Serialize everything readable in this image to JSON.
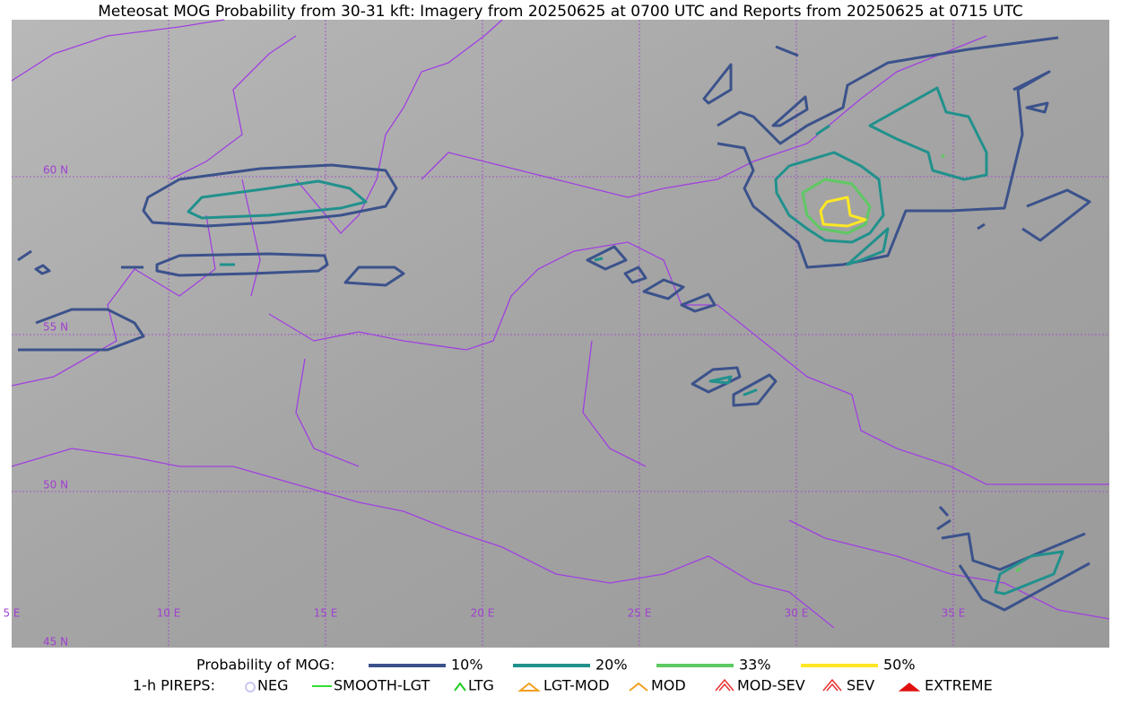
{
  "header": {
    "title": "Meteosat MOG Probability from 30-31 kft: Imagery from 20250625 at 0700 UTC and Reports from 20250625 at 0715 UTC"
  },
  "map": {
    "lat_labels": [
      "60 N",
      "55 N",
      "50 N",
      "45 N"
    ],
    "lon_labels": [
      "5 E",
      "10 E",
      "15 E",
      "20 E",
      "25 E",
      "30 E",
      "35 E"
    ]
  },
  "legend": {
    "mog": {
      "label": "Probability of MOG:",
      "items": [
        {
          "label": "10%",
          "color": "#3b528b"
        },
        {
          "label": "20%",
          "color": "#21918c"
        },
        {
          "label": "33%",
          "color": "#5ec962"
        },
        {
          "label": "50%",
          "color": "#fde725"
        }
      ]
    },
    "pireps": {
      "label": "1-h PIREPS:",
      "items": [
        {
          "label": "NEG",
          "color": "#c8c8f0"
        },
        {
          "label": "SMOOTH-LGT",
          "color": "#33dd33"
        },
        {
          "label": "LTG",
          "color": "#22cc22"
        },
        {
          "label": "LGT-MOD",
          "color": "#f0a020"
        },
        {
          "label": "MOD",
          "color": "#f0a020"
        },
        {
          "label": "MOD-SEV",
          "color": "#e83030"
        },
        {
          "label": "SEV",
          "color": "#e83030"
        },
        {
          "label": "EXTREME",
          "color": "#e01010"
        }
      ]
    }
  }
}
